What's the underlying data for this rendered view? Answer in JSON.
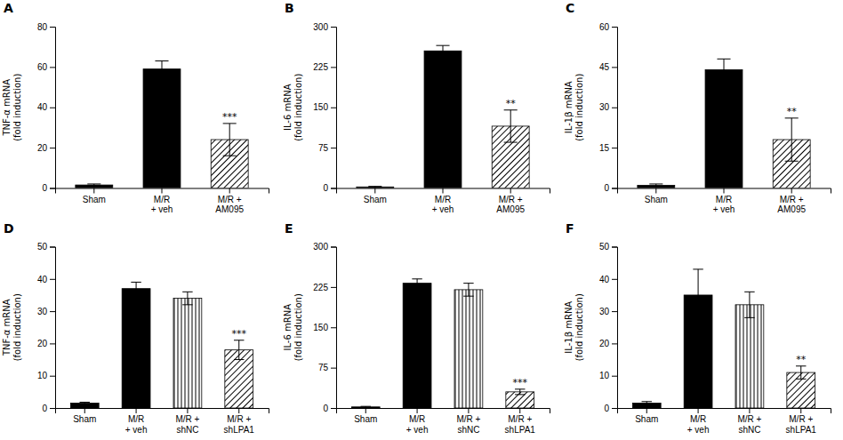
{
  "chart_data": [
    {
      "type": "bar",
      "title": "A",
      "y_label": "TNF-α mRNA\n(fold induction)",
      "categories": [
        "Sham",
        "M/R\n+ veh",
        "M/R +\nAM095"
      ],
      "values": [
        1.5,
        59,
        24
      ],
      "errors": [
        0.5,
        4,
        8
      ],
      "colors": [
        "black",
        "black",
        "hatch"
      ],
      "ylim": [
        0,
        80
      ],
      "yticks": [
        0,
        20,
        40,
        60,
        80
      ],
      "annotations": [
        {
          "category": "M/R +\nAM095",
          "text": "***"
        }
      ]
    },
    {
      "type": "bar",
      "title": "B",
      "y_label": "IL-6 mRNA\n(fold induction)",
      "categories": [
        "Sham",
        "M/R\n+ veh",
        "M/R +\nAM095"
      ],
      "values": [
        2,
        255,
        115
      ],
      "errors": [
        1,
        10,
        30
      ],
      "colors": [
        "black",
        "black",
        "hatch"
      ],
      "ylim": [
        0,
        300
      ],
      "yticks": [
        0,
        75,
        150,
        225,
        300
      ],
      "annotations": [
        {
          "category": "M/R +\nAM095",
          "text": "**"
        }
      ]
    },
    {
      "type": "bar",
      "title": "C",
      "y_label": "IL-1β mRNA\n(fold induction)",
      "categories": [
        "Sham",
        "M/R\n+ veh",
        "M/R +\nAM095"
      ],
      "values": [
        1,
        44,
        18
      ],
      "errors": [
        0.5,
        4,
        8
      ],
      "colors": [
        "black",
        "black",
        "hatch"
      ],
      "ylim": [
        0,
        60
      ],
      "yticks": [
        0,
        15,
        30,
        45,
        60
      ],
      "annotations": [
        {
          "category": "M/R +\nAM095",
          "text": "**"
        }
      ]
    },
    {
      "type": "bar",
      "title": "D",
      "y_label": "TNF-α mRNA\n(fold induction)",
      "categories": [
        "Sham",
        "M/R\n+ veh",
        "M/R +\nshNC",
        "M/R +\nshLPA1"
      ],
      "values": [
        1.5,
        37,
        34,
        18
      ],
      "errors": [
        0.3,
        2,
        2,
        3
      ],
      "colors": [
        "black",
        "black",
        "vstripe",
        "hatch"
      ],
      "ylim": [
        0,
        50
      ],
      "yticks": [
        0,
        10,
        20,
        30,
        40,
        50
      ],
      "annotations": [
        {
          "category": "M/R +\nshLPA1",
          "text": "***"
        }
      ]
    },
    {
      "type": "bar",
      "title": "E",
      "y_label": "IL-6 mRNA\n(fold induction)",
      "categories": [
        "Sham",
        "M/R\n+ veh",
        "M/R +\nshNC",
        "M/R +\nshLPA1"
      ],
      "values": [
        2,
        232,
        220,
        30
      ],
      "errors": [
        1,
        8,
        12,
        5
      ],
      "colors": [
        "black",
        "black",
        "vstripe",
        "hatch"
      ],
      "ylim": [
        0,
        300
      ],
      "yticks": [
        0,
        75,
        150,
        225,
        300
      ],
      "annotations": [
        {
          "category": "M/R +\nshLPA1",
          "text": "***"
        }
      ]
    },
    {
      "type": "bar",
      "title": "F",
      "y_label": "IL-1β mRNA\n(fold induction)",
      "categories": [
        "Sham",
        "M/R\n+ veh",
        "M/R +\nshNC",
        "M/R +\nshLPA1"
      ],
      "values": [
        1.5,
        35,
        32,
        11
      ],
      "errors": [
        0.5,
        8,
        4,
        2
      ],
      "colors": [
        "black",
        "black",
        "vstripe",
        "hatch"
      ],
      "ylim": [
        0,
        50
      ],
      "yticks": [
        0,
        10,
        20,
        30,
        40,
        50
      ],
      "annotations": [
        {
          "category": "M/R +\nshLPA1",
          "text": "**"
        }
      ]
    }
  ]
}
